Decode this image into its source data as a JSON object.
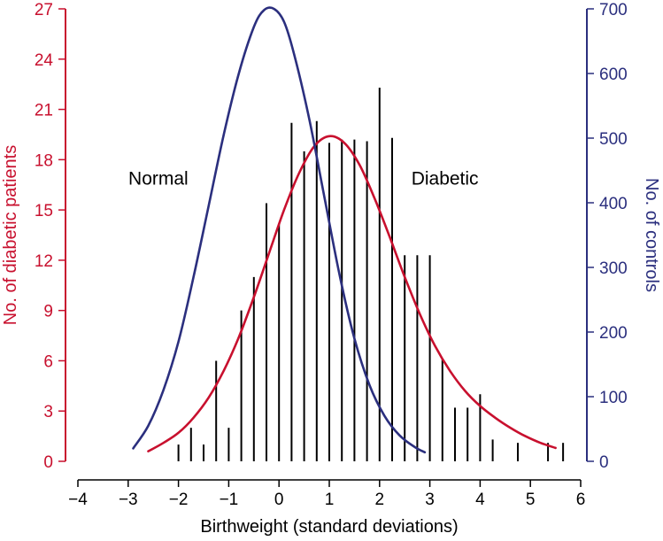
{
  "chart_data": {
    "type": "bar",
    "xlabel": "Birthweight (standard deviations)",
    "ylabel_left": "No. of diabetic patients",
    "ylabel_right": "No. of controls",
    "xlim": [
      -4,
      6
    ],
    "ylim_left": [
      0,
      27
    ],
    "ylim_right": [
      0,
      700
    ],
    "x_ticks": [
      "−4",
      "−3",
      "−2",
      "−1",
      "0",
      "1",
      "2",
      "3",
      "4",
      "5",
      "6"
    ],
    "y_left_ticks": [
      "0",
      "3",
      "6",
      "9",
      "12",
      "15",
      "18",
      "21",
      "24",
      "27"
    ],
    "y_right_ticks": [
      "0",
      "100",
      "200",
      "300",
      "400",
      "500",
      "600",
      "700"
    ],
    "grid": false,
    "colors": {
      "diabetic": "#c8102e",
      "controls": "#2b2f7e",
      "bars": "#000000"
    },
    "annotations": [
      {
        "text": "Normal",
        "x": -2.4,
        "y_left": 16.5
      },
      {
        "text": "Diabetic",
        "x": 3.3,
        "y_left": 16.5
      }
    ],
    "diabetic_counts": {
      "axis": "left",
      "x": [
        -2.0,
        -1.75,
        -1.5,
        -1.25,
        -1.0,
        -0.75,
        -0.5,
        -0.25,
        0.0,
        0.25,
        0.5,
        0.75,
        1.0,
        1.25,
        1.5,
        1.75,
        2.0,
        2.25,
        2.5,
        2.75,
        3.0,
        3.25,
        3.5,
        3.75,
        4.0,
        4.25,
        4.75,
        5.35,
        5.65
      ],
      "values": [
        1,
        2,
        1,
        6,
        2,
        9,
        11,
        15.4,
        14.2,
        20.2,
        18.5,
        20.3,
        19,
        19.2,
        19.2,
        19.1,
        22.3,
        19.3,
        12.3,
        12.3,
        12.3,
        6.1,
        3.2,
        3.2,
        4.0,
        1.3,
        1.1,
        1.1,
        1.1
      ]
    },
    "series": [
      {
        "name": "Diabetic",
        "axis": "left",
        "x": [
          -2.6,
          -2.3,
          -2.0,
          -1.7,
          -1.4,
          -1.1,
          -0.8,
          -0.5,
          -0.2,
          0.1,
          0.4,
          0.7,
          1.0,
          1.3,
          1.6,
          1.9,
          2.2,
          2.5,
          2.8,
          3.1,
          3.4,
          3.7,
          4.0,
          4.3,
          4.6,
          4.9,
          5.2,
          5.5
        ],
        "values": [
          0.6,
          1.1,
          1.7,
          2.6,
          3.8,
          5.4,
          7.4,
          9.8,
          12.4,
          15.0,
          17.2,
          18.8,
          19.4,
          19.0,
          17.7,
          15.7,
          13.4,
          11.0,
          8.8,
          6.9,
          5.4,
          4.2,
          3.3,
          2.6,
          2.0,
          1.5,
          1.1,
          0.8
        ]
      },
      {
        "name": "Normal",
        "axis": "right",
        "x": [
          -2.9,
          -2.6,
          -2.3,
          -2.0,
          -1.7,
          -1.4,
          -1.1,
          -0.8,
          -0.5,
          -0.3,
          -0.1,
          0.1,
          0.3,
          0.6,
          0.9,
          1.2,
          1.5,
          1.8,
          2.1,
          2.4,
          2.7,
          2.9
        ],
        "values": [
          20,
          55,
          110,
          185,
          285,
          395,
          505,
          600,
          672,
          698,
          700,
          680,
          630,
          530,
          410,
          290,
          190,
          118,
          70,
          40,
          22,
          14
        ]
      }
    ]
  }
}
